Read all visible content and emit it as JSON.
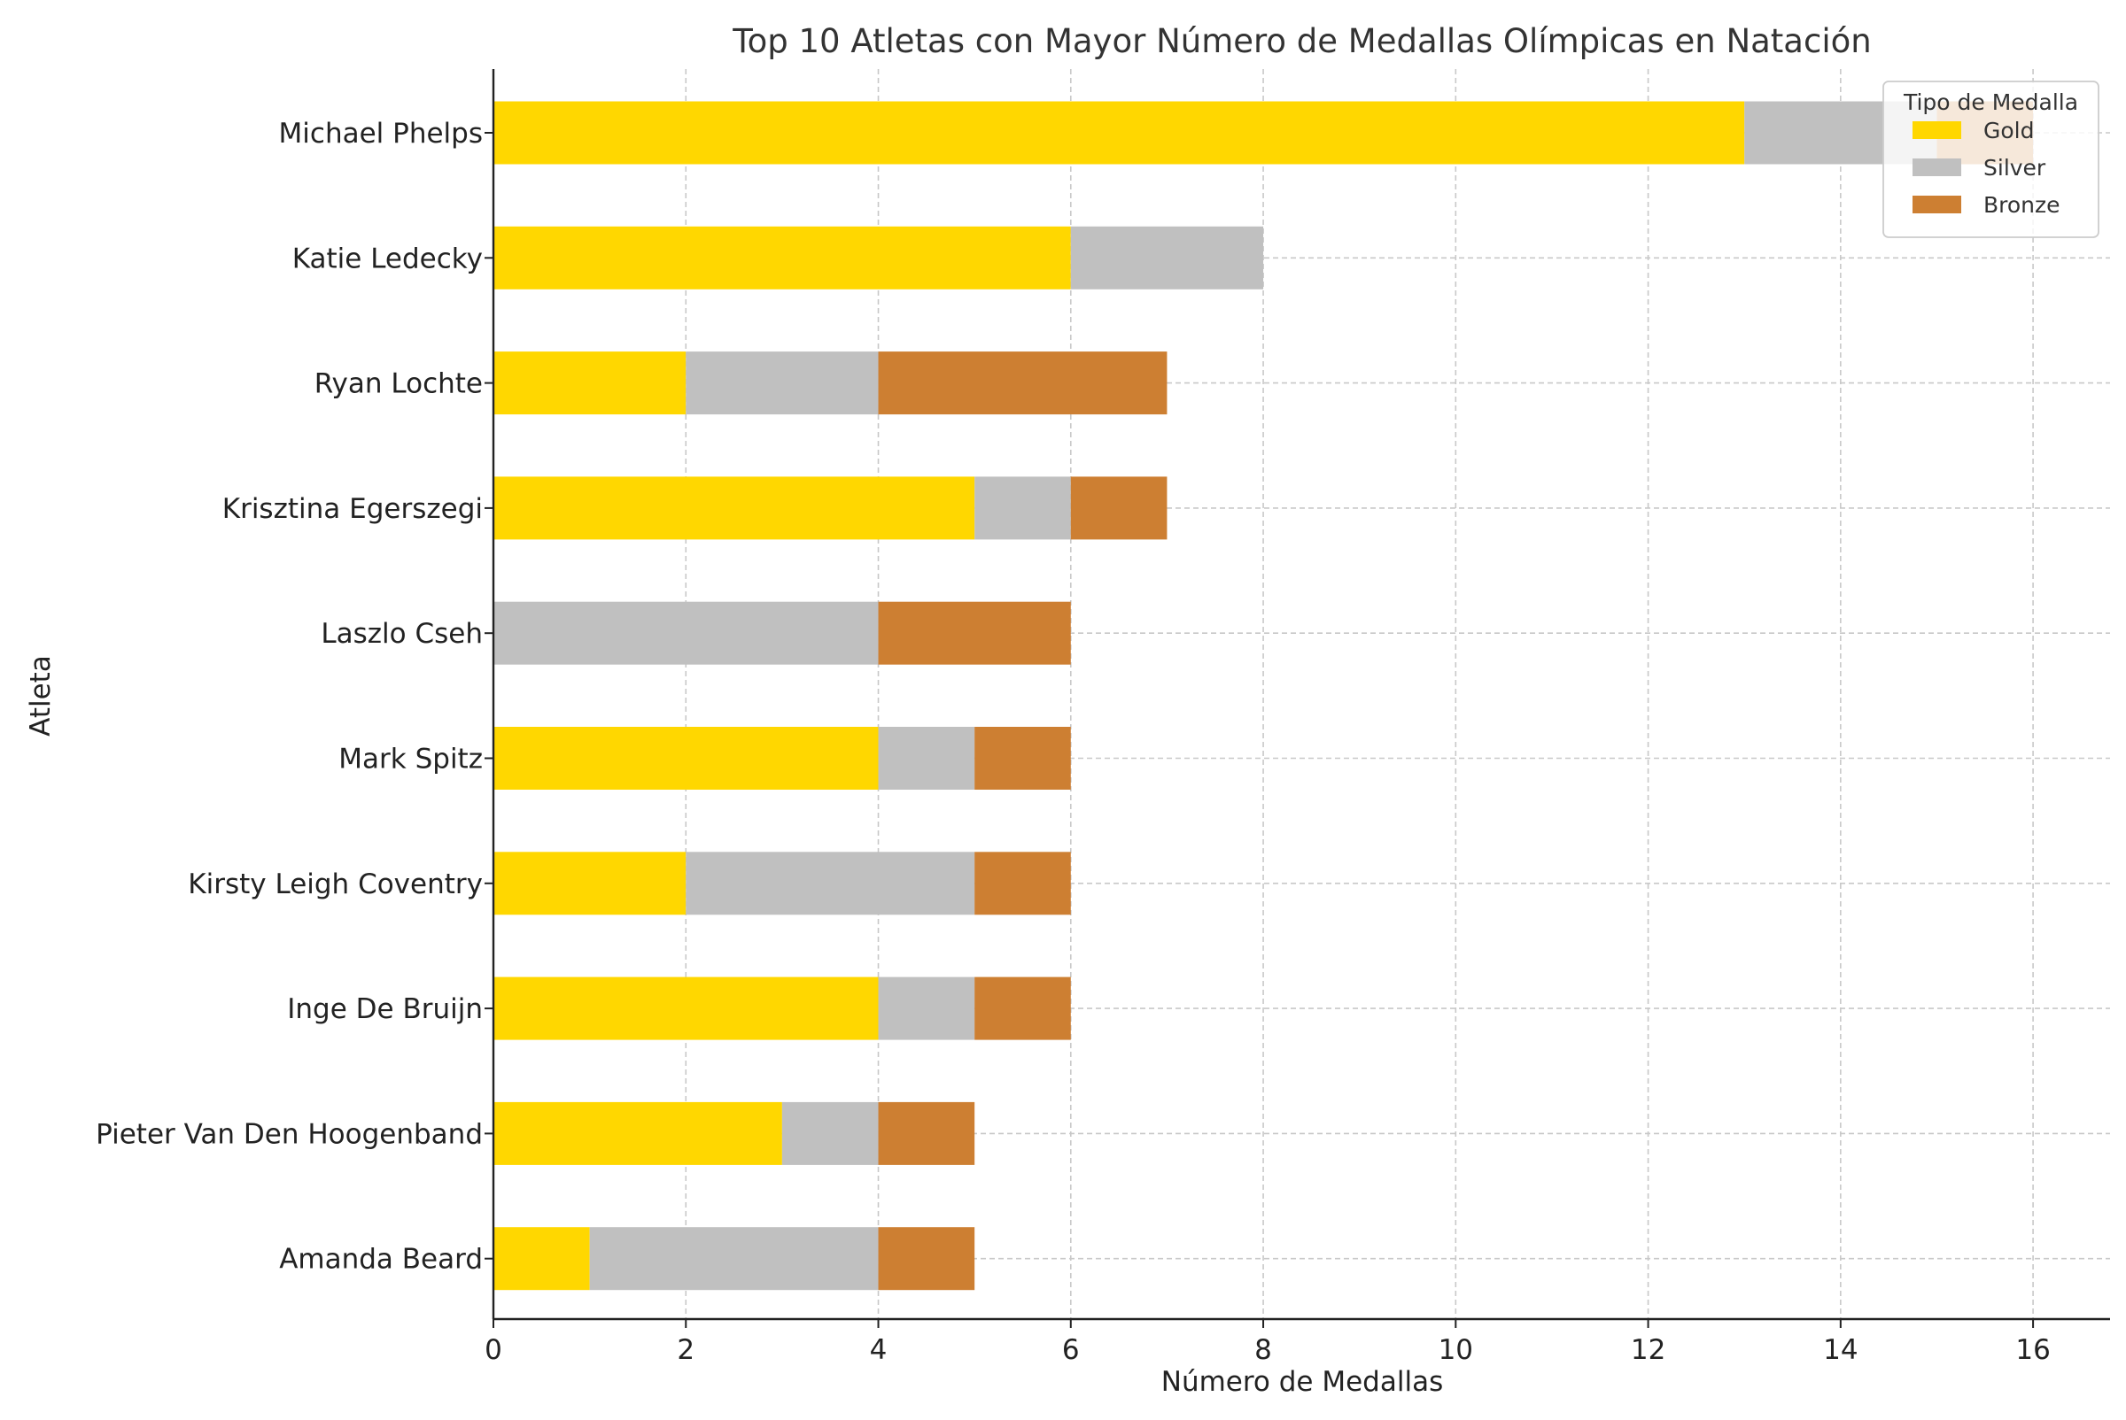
{
  "chart_data": {
    "type": "bar",
    "orientation": "horizontal",
    "stacked": true,
    "title": "Top 10 Atletas con Mayor Número de Medallas Olímpicas en Natación",
    "xlabel": "Número de Medallas",
    "ylabel": "Atleta",
    "xlim": [
      0,
      16.8
    ],
    "xticks": [
      0,
      2,
      4,
      6,
      8,
      10,
      12,
      14,
      16
    ],
    "grid": true,
    "legend": {
      "title": "Tipo de Medalla",
      "position": "top-right"
    },
    "categories": [
      "Michael Phelps",
      "Katie Ledecky",
      "Ryan Lochte",
      "Krisztina Egerszegi",
      "Laszlo Cseh",
      "Mark Spitz",
      "Kirsty Leigh Coventry",
      "Inge De Bruijn",
      "Pieter Van Den Hoogenband",
      "Amanda Beard"
    ],
    "series": [
      {
        "name": "Gold",
        "color": "#FFD700",
        "values": [
          13,
          6,
          2,
          5,
          0,
          4,
          2,
          4,
          3,
          1
        ]
      },
      {
        "name": "Silver",
        "color": "#C0C0C0",
        "values": [
          2,
          2,
          2,
          1,
          4,
          1,
          3,
          1,
          1,
          3
        ]
      },
      {
        "name": "Bronze",
        "color": "#CD7F32",
        "values": [
          1,
          0,
          3,
          1,
          2,
          1,
          1,
          1,
          1,
          1
        ]
      }
    ]
  }
}
